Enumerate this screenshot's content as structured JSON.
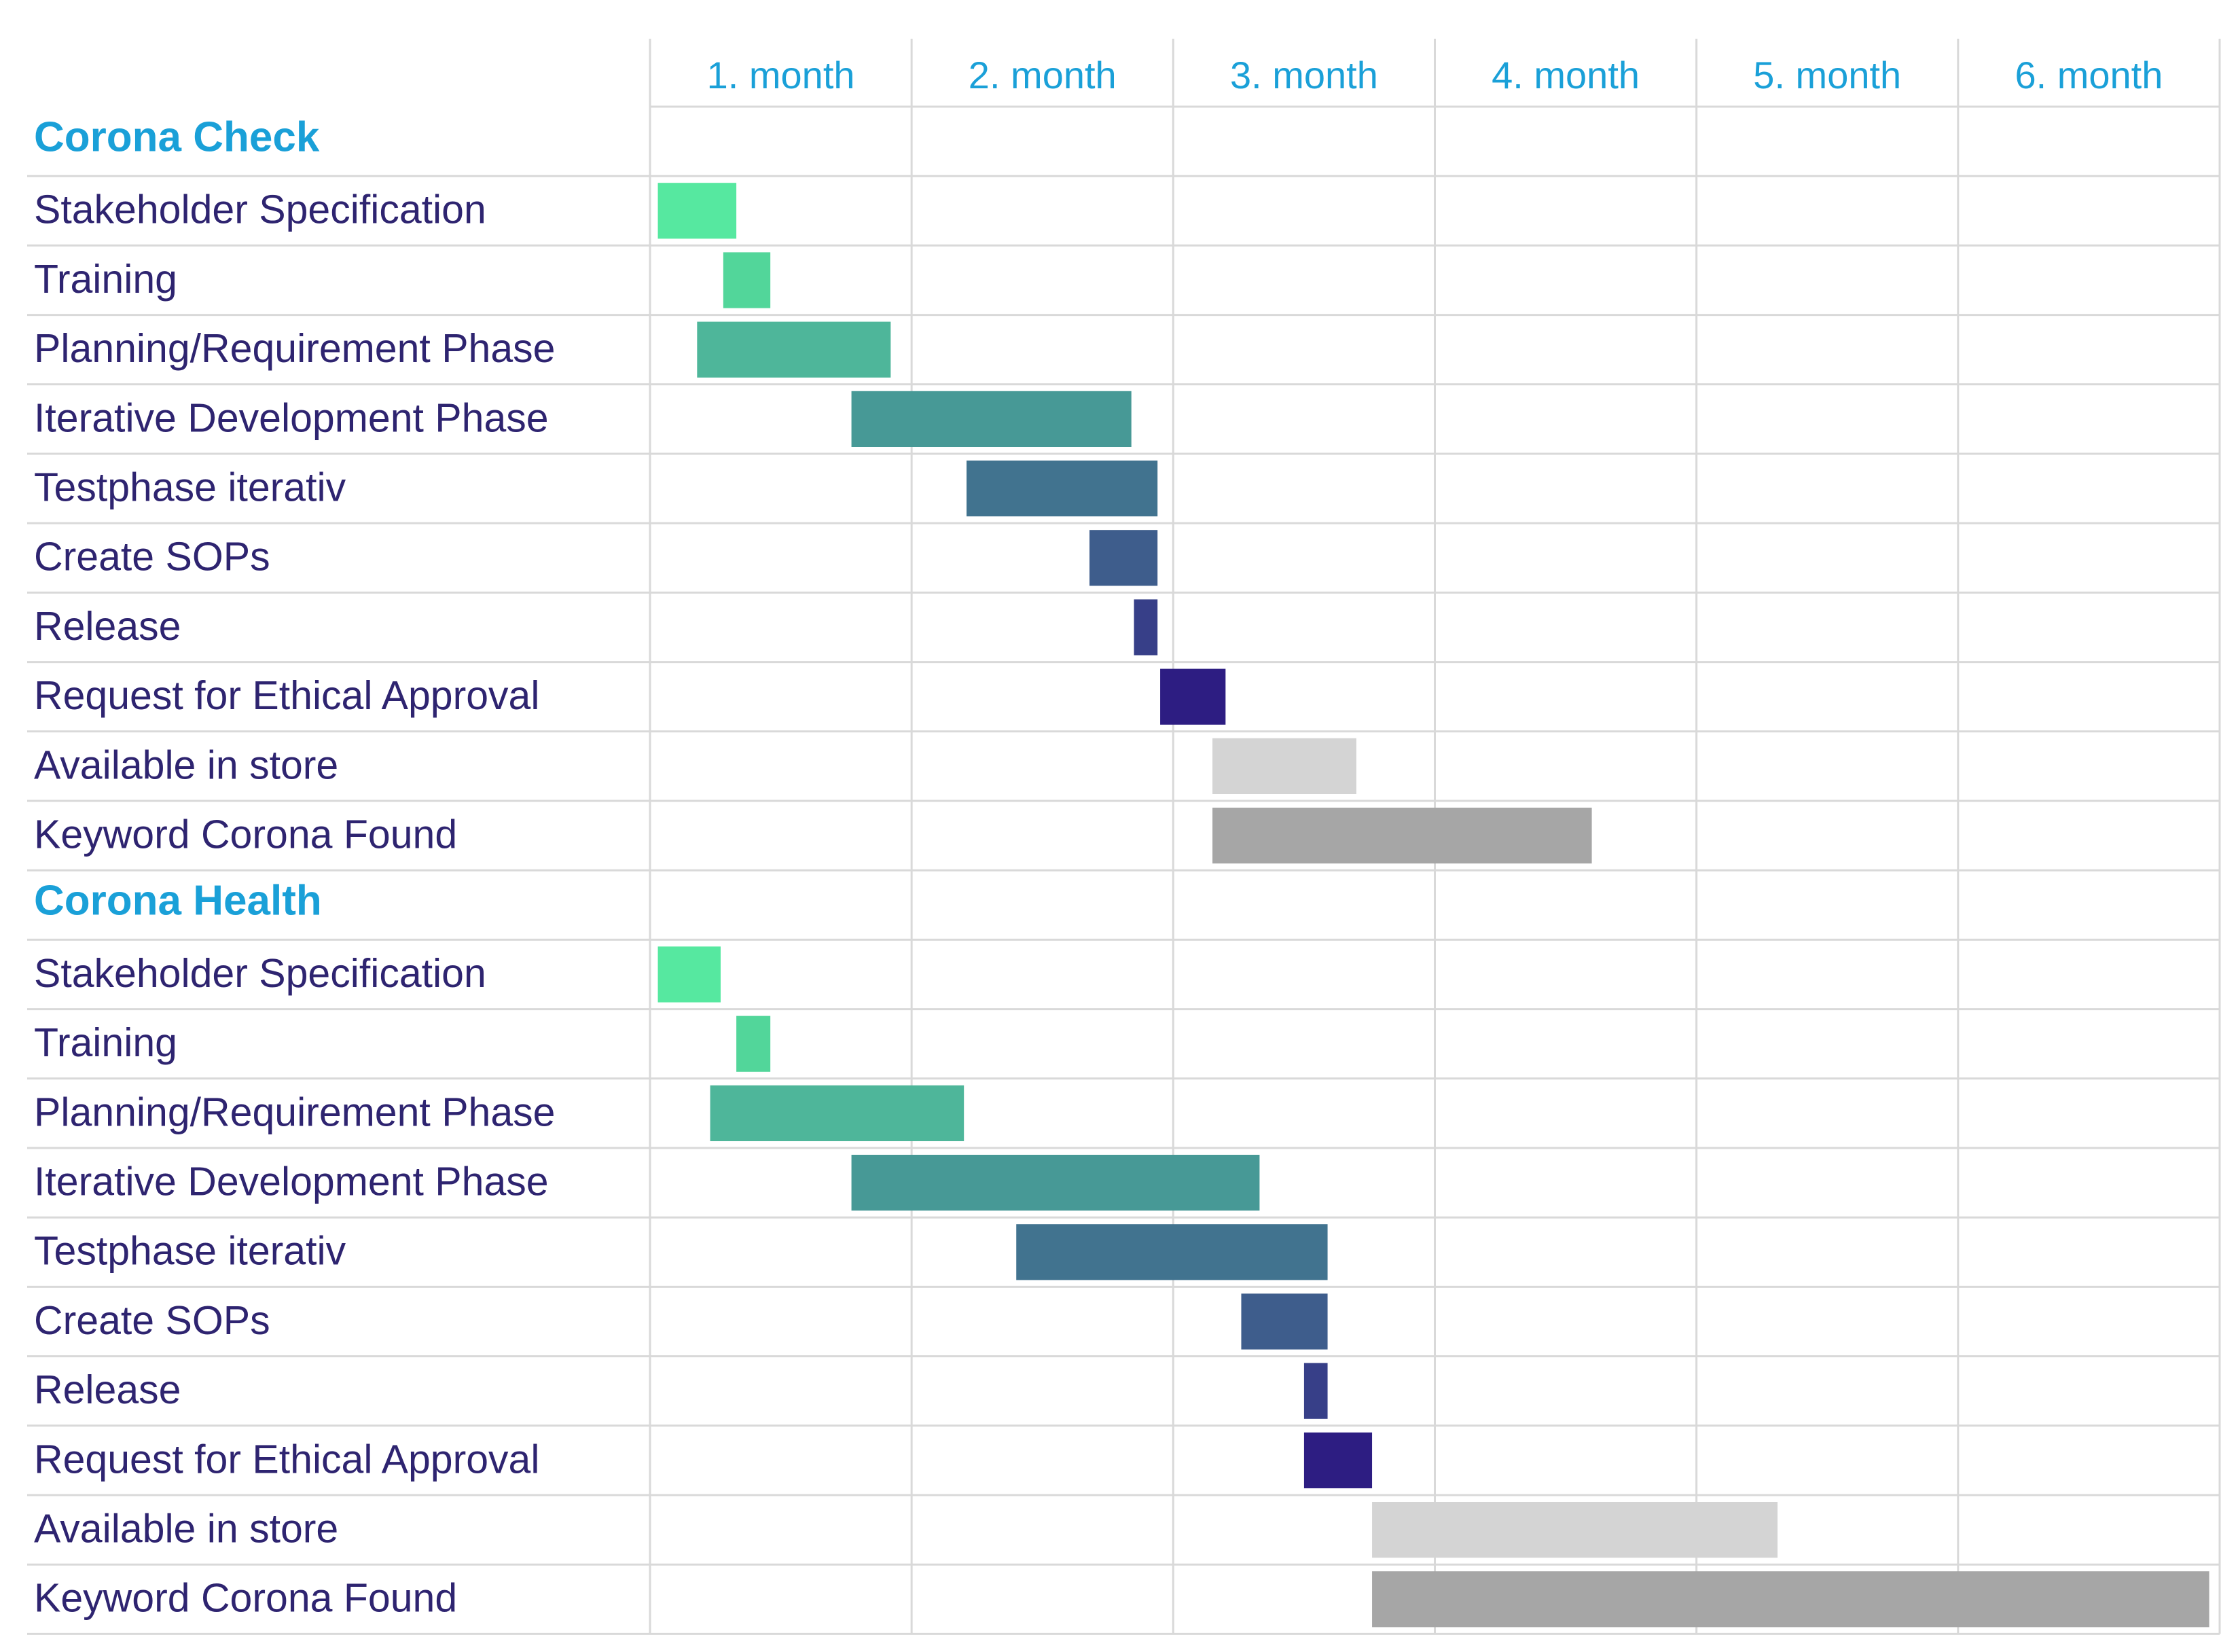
{
  "chart_data": {
    "type": "gantt",
    "months": [
      "1. month",
      "2. month",
      "3. month",
      "4. month",
      "5. month",
      "6. month"
    ],
    "x_range": [
      0,
      6
    ],
    "grid": true,
    "groups": [
      {
        "name": "Corona Check",
        "tasks": [
          {
            "label": "Stakeholder Specification",
            "start": 0.03,
            "end": 0.33,
            "color": "#56e8a0"
          },
          {
            "label": "Training",
            "start": 0.28,
            "end": 0.46,
            "color": "#52d69a"
          },
          {
            "label": "Planning/Requirement Phase",
            "start": 0.18,
            "end": 0.92,
            "color": "#4eb69a"
          },
          {
            "label": "Iterative Development Phase",
            "start": 0.77,
            "end": 1.84,
            "color": "#479996"
          },
          {
            "label": "Testphase iterativ",
            "start": 1.21,
            "end": 1.94,
            "color": "#41738f"
          },
          {
            "label": "Create SOPs",
            "start": 1.68,
            "end": 1.94,
            "color": "#3e5d8c"
          },
          {
            "label": "Release",
            "start": 1.85,
            "end": 1.94,
            "color": "#373f88"
          },
          {
            "label": "Request for Ethical Approval",
            "start": 1.95,
            "end": 2.2,
            "color": "#2d1d82"
          },
          {
            "label": "Available in store",
            "start": 2.15,
            "end": 2.7,
            "color": "#d4d4d4"
          },
          {
            "label": "Keyword Corona Found",
            "start": 2.15,
            "end": 3.6,
            "color": "#a6a6a6"
          }
        ]
      },
      {
        "name": "Corona Health",
        "tasks": [
          {
            "label": "Stakeholder Specification",
            "start": 0.03,
            "end": 0.27,
            "color": "#56e8a0"
          },
          {
            "label": "Training",
            "start": 0.33,
            "end": 0.46,
            "color": "#52d69a"
          },
          {
            "label": "Planning/Requirement Phase",
            "start": 0.23,
            "end": 1.2,
            "color": "#4eb69a"
          },
          {
            "label": "Iterative Development Phase",
            "start": 0.77,
            "end": 2.33,
            "color": "#479996"
          },
          {
            "label": "Testphase iterativ",
            "start": 1.4,
            "end": 2.59,
            "color": "#41738f"
          },
          {
            "label": "Create SOPs",
            "start": 2.26,
            "end": 2.59,
            "color": "#3e5d8c"
          },
          {
            "label": "Release",
            "start": 2.5,
            "end": 2.59,
            "color": "#373f88"
          },
          {
            "label": "Request for Ethical Approval",
            "start": 2.5,
            "end": 2.76,
            "color": "#2d1d82"
          },
          {
            "label": "Available in store",
            "start": 2.76,
            "end": 4.31,
            "color": "#d4d4d4"
          },
          {
            "label": "Keyword Corona Found",
            "start": 2.76,
            "end": 5.96,
            "color": "#a6a6a6"
          }
        ]
      }
    ]
  },
  "colors": {
    "month_label": "#1aa0d8",
    "group_label": "#1aa0d8",
    "task_label": "#2e2470",
    "grid": "#d9d9d9"
  }
}
